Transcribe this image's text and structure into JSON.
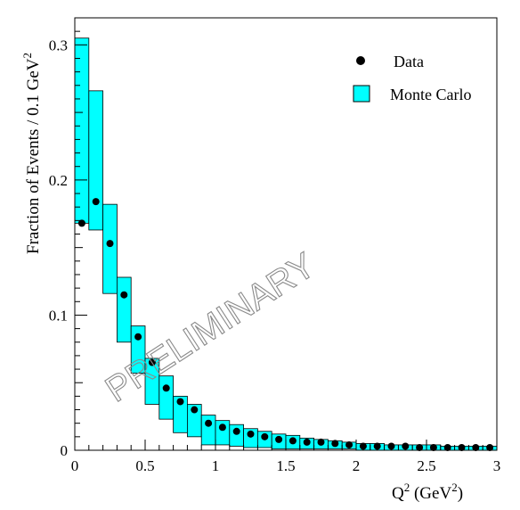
{
  "chart_data": {
    "type": "bar",
    "xlabel": "Q",
    "xlabel_sup": "2",
    "xlabel_unit": " (GeV",
    "xlabel_unit_sup": "2",
    "xlabel_unit_close": ")",
    "ylabel": "Fraction of Events / 0.1 GeV",
    "ylabel_sup": "2",
    "xlim": [
      0,
      3
    ],
    "ylim": [
      0,
      0.32
    ],
    "x_ticks": [
      {
        "v": 0,
        "label": "0"
      },
      {
        "v": 0.5,
        "label": "0.5"
      },
      {
        "v": 1,
        "label": "1"
      },
      {
        "v": 1.5,
        "label": "1.5"
      },
      {
        "v": 2,
        "label": "2"
      },
      {
        "v": 2.5,
        "label": "2.5"
      },
      {
        "v": 3,
        "label": "3"
      }
    ],
    "y_ticks": [
      {
        "v": 0,
        "label": "0"
      },
      {
        "v": 0.1,
        "label": "0.1"
      },
      {
        "v": 0.2,
        "label": "0.2"
      },
      {
        "v": 0.3,
        "label": "0.3"
      }
    ],
    "watermark": "PRELIMINARY",
    "legend_position": "top-right",
    "bin_width": 0.1,
    "series": [
      {
        "name": "Data",
        "kind": "points",
        "color": "#000000",
        "x": [
          0.05,
          0.15,
          0.25,
          0.35,
          0.45,
          0.55,
          0.65,
          0.75,
          0.85,
          0.95,
          1.05,
          1.15,
          1.25,
          1.35,
          1.45,
          1.55,
          1.65,
          1.75,
          1.85,
          1.95,
          2.05,
          2.15,
          2.25,
          2.35,
          2.45,
          2.55,
          2.65,
          2.75,
          2.85,
          2.95
        ],
        "y": [
          0.168,
          0.184,
          0.153,
          0.115,
          0.084,
          0.065,
          0.046,
          0.036,
          0.03,
          0.02,
          0.017,
          0.014,
          0.012,
          0.01,
          0.008,
          0.007,
          0.006,
          0.006,
          0.005,
          0.004,
          0.003,
          0.003,
          0.003,
          0.003,
          0.002,
          0.002,
          0.002,
          0.002,
          0.002,
          0.002
        ]
      },
      {
        "name": "Monte Carlo",
        "kind": "band",
        "color": "#00ffff",
        "x_low": [
          0.0,
          0.1,
          0.2,
          0.3,
          0.4,
          0.5,
          0.6,
          0.7,
          0.8,
          0.9,
          1.0,
          1.1,
          1.2,
          1.3,
          1.4,
          1.5,
          1.6,
          1.7,
          1.8,
          1.9,
          2.0,
          2.1,
          2.2,
          2.3,
          2.4,
          2.5,
          2.6,
          2.7,
          2.8,
          2.9
        ],
        "low": [
          0.168,
          0.163,
          0.116,
          0.08,
          0.057,
          0.034,
          0.023,
          0.013,
          0.01,
          0.004,
          0.004,
          0.003,
          0.002,
          0.002,
          0.001,
          0.001,
          0.001,
          0.001,
          0.001,
          0.001,
          0.0,
          0.0,
          0.0,
          0.0,
          0.0,
          0.0,
          0.0,
          0.0,
          0.0,
          0.0
        ],
        "high": [
          0.305,
          0.266,
          0.182,
          0.128,
          0.092,
          0.068,
          0.055,
          0.04,
          0.034,
          0.026,
          0.022,
          0.019,
          0.016,
          0.014,
          0.012,
          0.011,
          0.009,
          0.008,
          0.007,
          0.006,
          0.005,
          0.005,
          0.004,
          0.004,
          0.004,
          0.004,
          0.003,
          0.003,
          0.003,
          0.003
        ]
      }
    ]
  }
}
